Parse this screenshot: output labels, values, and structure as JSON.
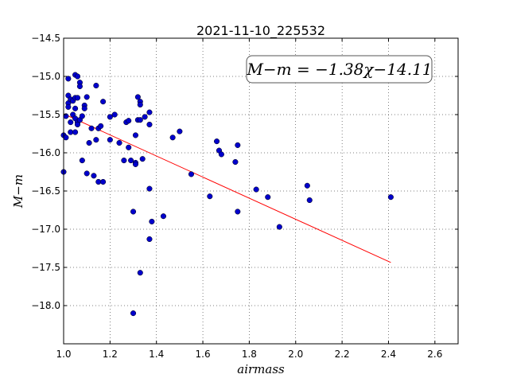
{
  "chart_data": {
    "type": "scatter",
    "title": "2021-11-10_225532",
    "xlabel": "airmass",
    "ylabel": "M−m",
    "xlim": [
      1.0,
      2.7
    ],
    "ylim": [
      -14.5,
      -18.5
    ],
    "y_inverted": true,
    "grid": true,
    "xticks": [
      "1.0",
      "1.2",
      "1.4",
      "1.6",
      "1.8",
      "2.0",
      "2.2",
      "2.4",
      "2.6"
    ],
    "yticks": [
      "−14.5",
      "−15.0",
      "−15.5",
      "−16.0",
      "−16.5",
      "−17.0",
      "−17.5",
      "−18.0"
    ],
    "annotation": "M−m = −1.38χ−14.11",
    "fit": {
      "slope": -1.38,
      "intercept": -14.11,
      "x_range": [
        1.0,
        2.41
      ],
      "color": "#ff0000"
    },
    "marker_color": "#0000cc",
    "points": [
      [
        1.0,
        -16.25
      ],
      [
        1.0,
        -15.77
      ],
      [
        1.01,
        -15.52
      ],
      [
        1.01,
        -15.8
      ],
      [
        1.02,
        -15.03
      ],
      [
        1.02,
        -15.25
      ],
      [
        1.02,
        -15.35
      ],
      [
        1.02,
        -15.4
      ],
      [
        1.03,
        -15.3
      ],
      [
        1.03,
        -15.6
      ],
      [
        1.03,
        -15.73
      ],
      [
        1.04,
        -15.32
      ],
      [
        1.04,
        -15.5
      ],
      [
        1.05,
        -15.28
      ],
      [
        1.05,
        -15.42
      ],
      [
        1.05,
        -15.55
      ],
      [
        1.05,
        -15.73
      ],
      [
        1.05,
        -14.98
      ],
      [
        1.06,
        -15.0
      ],
      [
        1.06,
        -15.28
      ],
      [
        1.06,
        -15.6
      ],
      [
        1.06,
        -15.63
      ],
      [
        1.07,
        -15.08
      ],
      [
        1.07,
        -15.13
      ],
      [
        1.07,
        -15.57
      ],
      [
        1.08,
        -15.52
      ],
      [
        1.08,
        -16.1
      ],
      [
        1.09,
        -15.38
      ],
      [
        1.09,
        -15.42
      ],
      [
        1.1,
        -15.27
      ],
      [
        1.1,
        -16.27
      ],
      [
        1.11,
        -15.87
      ],
      [
        1.12,
        -15.68
      ],
      [
        1.13,
        -16.3
      ],
      [
        1.14,
        -15.12
      ],
      [
        1.14,
        -15.83
      ],
      [
        1.15,
        -15.68
      ],
      [
        1.15,
        -16.38
      ],
      [
        1.16,
        -15.65
      ],
      [
        1.17,
        -15.33
      ],
      [
        1.17,
        -16.38
      ],
      [
        1.2,
        -15.53
      ],
      [
        1.2,
        -15.83
      ],
      [
        1.22,
        -15.5
      ],
      [
        1.24,
        -15.87
      ],
      [
        1.26,
        -16.1
      ],
      [
        1.27,
        -15.6
      ],
      [
        1.28,
        -15.58
      ],
      [
        1.28,
        -15.93
      ],
      [
        1.29,
        -16.1
      ],
      [
        1.3,
        -18.1
      ],
      [
        1.3,
        -16.77
      ],
      [
        1.31,
        -15.77
      ],
      [
        1.31,
        -16.13
      ],
      [
        1.31,
        -16.15
      ],
      [
        1.32,
        -15.57
      ],
      [
        1.32,
        -15.27
      ],
      [
        1.33,
        -15.33
      ],
      [
        1.33,
        -15.37
      ],
      [
        1.33,
        -15.57
      ],
      [
        1.33,
        -17.57
      ],
      [
        1.34,
        -16.08
      ],
      [
        1.35,
        -15.53
      ],
      [
        1.37,
        -15.47
      ],
      [
        1.37,
        -15.63
      ],
      [
        1.37,
        -16.47
      ],
      [
        1.37,
        -17.13
      ],
      [
        1.38,
        -16.9
      ],
      [
        1.43,
        -16.83
      ],
      [
        1.47,
        -15.8
      ],
      [
        1.5,
        -15.72
      ],
      [
        1.55,
        -16.28
      ],
      [
        1.63,
        -16.57
      ],
      [
        1.66,
        -15.85
      ],
      [
        1.67,
        -15.97
      ],
      [
        1.68,
        -16.02
      ],
      [
        1.74,
        -16.12
      ],
      [
        1.75,
        -15.9
      ],
      [
        1.75,
        -16.77
      ],
      [
        1.83,
        -16.48
      ],
      [
        1.88,
        -16.58
      ],
      [
        1.93,
        -16.97
      ],
      [
        2.05,
        -16.43
      ],
      [
        2.06,
        -16.62
      ],
      [
        2.41,
        -16.58
      ]
    ]
  }
}
